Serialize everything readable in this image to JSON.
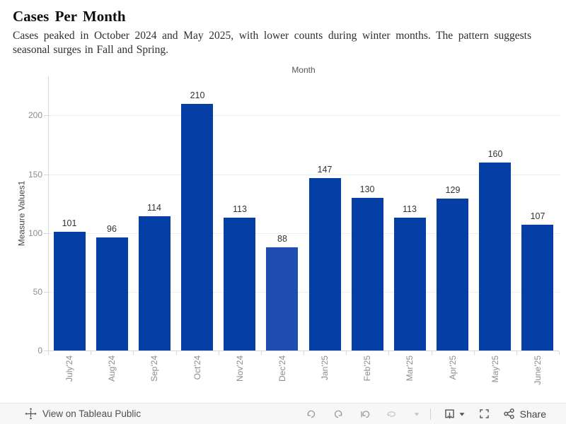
{
  "header": {
    "title": "Cases Per Month",
    "subtitle": "Cases peaked in October 2024 and May 2025, with lower counts during winter months. The pattern suggests seasonal surges in Fall and Spring."
  },
  "chart_data": {
    "type": "bar",
    "title": "Month",
    "xlabel": "Month",
    "ylabel": "Measure Values1",
    "categories": [
      "July'24",
      "Aug'24",
      "Sep'24",
      "Oct'24",
      "Nov'24",
      "Dec'24",
      "Jan'25",
      "Feb'25",
      "Mar'25",
      "Apr'25",
      "May'25",
      "June'25"
    ],
    "values": [
      101,
      96,
      114,
      210,
      113,
      88,
      147,
      130,
      113,
      129,
      160,
      107
    ],
    "yticks": [
      0,
      50,
      100,
      150,
      200
    ],
    "ylim": [
      0,
      233
    ],
    "grid": true,
    "legend": false,
    "bar_color": "#053fa5",
    "highlight_index": 5,
    "highlight_color": "#1d4dae",
    "value_label_color": "#333333",
    "axis_text_color": "#8d8d8d"
  },
  "toolbar": {
    "view_label": "View on Tableau Public",
    "share_label": "Share",
    "icon_names": [
      "tableau-logo-icon",
      "undo-icon",
      "redo-icon",
      "replay-icon",
      "refresh-icon",
      "caret-down-icon",
      "download-icon",
      "caret-down-icon",
      "fullscreen-icon",
      "share-icon"
    ]
  }
}
